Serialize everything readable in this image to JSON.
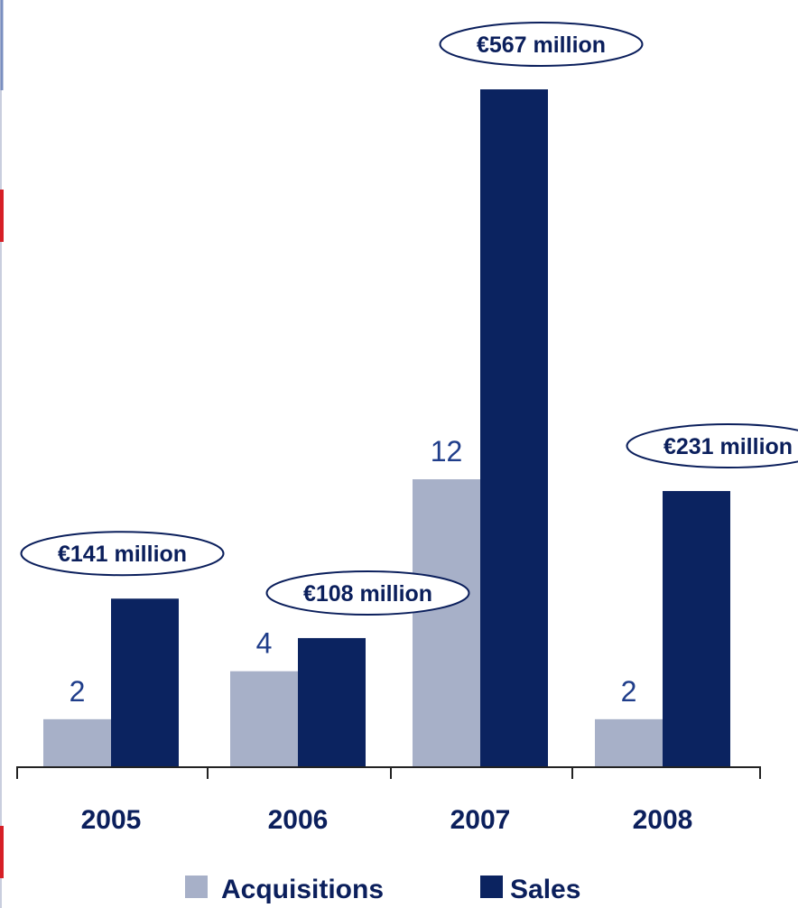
{
  "chart_data": {
    "type": "bar",
    "categories": [
      "2005",
      "2006",
      "2007",
      "2008"
    ],
    "series": [
      {
        "name": "Acquisitions",
        "values": [
          2,
          4,
          12,
          2
        ],
        "labels": [
          "2",
          "4",
          "12",
          "2"
        ],
        "color": "#a7b0c8"
      },
      {
        "name": "Sales",
        "values": [
          141,
          108,
          567,
          231
        ],
        "labels": [
          "€141 million",
          "€108 million",
          "€567 million",
          "€231 million"
        ],
        "color": "#0b2360"
      }
    ],
    "title": "",
    "xlabel": "",
    "ylabel": "",
    "grid": false,
    "legend_position": "bottom",
    "colors": {
      "text": "#0b1f5c",
      "count_text": "#1f3d8a",
      "axis": "#222222",
      "callout_border": "#0b1f5c",
      "accent_left": "#d61f26"
    }
  }
}
